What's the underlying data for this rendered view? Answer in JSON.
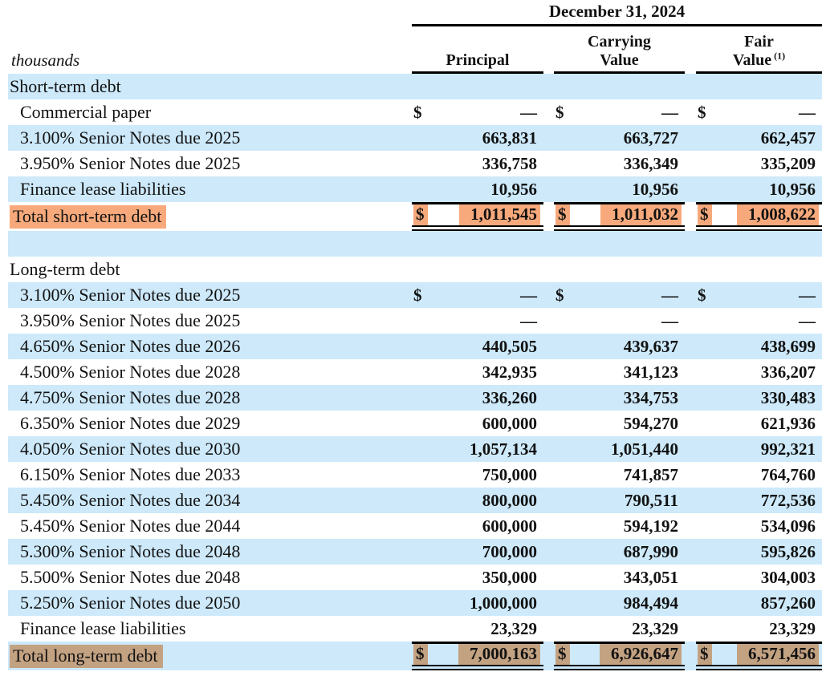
{
  "meta": {
    "unit_label": "thousands"
  },
  "header": {
    "date_title": "December 31, 2024",
    "columns": [
      {
        "lines": [
          "Principal"
        ],
        "footnote": ""
      },
      {
        "lines": [
          "Carrying",
          "Value"
        ],
        "footnote": ""
      },
      {
        "lines": [
          "Fair",
          "Value"
        ],
        "footnote": "(1)"
      }
    ]
  },
  "colors": {
    "row_alt_blue": "#cde9fa",
    "highlight_orange": "#f7a97b",
    "highlight_tan": "#c3a282",
    "text": "#121212"
  },
  "table": {
    "value_columns": [
      "Principal",
      "Carrying Value",
      "Fair Value (1)"
    ],
    "rows": [
      {
        "label": "Short-term debt",
        "type": "section",
        "bg": "blue",
        "indent": false,
        "dollar": false,
        "highlight": "",
        "values": null
      },
      {
        "label": "Commercial paper",
        "type": "item",
        "bg": "white",
        "indent": true,
        "dollar": true,
        "highlight": "",
        "values": [
          "—",
          "—",
          "—"
        ]
      },
      {
        "label": "3.100% Senior Notes due 2025",
        "type": "item",
        "bg": "blue",
        "indent": true,
        "dollar": false,
        "highlight": "",
        "values": [
          "663,831",
          "663,727",
          "662,457"
        ]
      },
      {
        "label": "3.950% Senior Notes due 2025",
        "type": "item",
        "bg": "white",
        "indent": true,
        "dollar": false,
        "highlight": "",
        "values": [
          "336,758",
          "336,349",
          "335,209"
        ]
      },
      {
        "label": "Finance lease liabilities",
        "type": "item",
        "bg": "blue",
        "indent": true,
        "dollar": false,
        "highlight": "",
        "values": [
          "10,956",
          "10,956",
          "10,956"
        ]
      },
      {
        "label": "Total short-term debt",
        "type": "total",
        "bg": "white",
        "indent": false,
        "dollar": true,
        "highlight": "orange",
        "values": [
          "1,011,545",
          "1,011,032",
          "1,008,622"
        ]
      },
      {
        "label": "",
        "type": "spacer",
        "bg": "blue",
        "indent": false,
        "dollar": false,
        "highlight": "",
        "values": null
      },
      {
        "label": "Long-term debt",
        "type": "section",
        "bg": "white",
        "indent": false,
        "dollar": false,
        "highlight": "",
        "values": null
      },
      {
        "label": "3.100% Senior Notes due 2025",
        "type": "item",
        "bg": "blue",
        "indent": true,
        "dollar": true,
        "highlight": "",
        "values": [
          "—",
          "—",
          "—"
        ]
      },
      {
        "label": "3.950% Senior Notes due 2025",
        "type": "item",
        "bg": "white",
        "indent": true,
        "dollar": false,
        "highlight": "",
        "values": [
          "—",
          "—",
          "—"
        ]
      },
      {
        "label": "4.650% Senior Notes due 2026",
        "type": "item",
        "bg": "blue",
        "indent": true,
        "dollar": false,
        "highlight": "",
        "values": [
          "440,505",
          "439,637",
          "438,699"
        ]
      },
      {
        "label": "4.500% Senior Notes due 2028",
        "type": "item",
        "bg": "white",
        "indent": true,
        "dollar": false,
        "highlight": "",
        "values": [
          "342,935",
          "341,123",
          "336,207"
        ]
      },
      {
        "label": "4.750% Senior Notes due 2028",
        "type": "item",
        "bg": "blue",
        "indent": true,
        "dollar": false,
        "highlight": "",
        "values": [
          "336,260",
          "334,753",
          "330,483"
        ]
      },
      {
        "label": "6.350% Senior Notes due 2029",
        "type": "item",
        "bg": "white",
        "indent": true,
        "dollar": false,
        "highlight": "",
        "values": [
          "600,000",
          "594,270",
          "621,936"
        ]
      },
      {
        "label": "4.050% Senior Notes due 2030",
        "type": "item",
        "bg": "blue",
        "indent": true,
        "dollar": false,
        "highlight": "",
        "values": [
          "1,057,134",
          "1,051,440",
          "992,321"
        ]
      },
      {
        "label": "6.150% Senior Notes due 2033",
        "type": "item",
        "bg": "white",
        "indent": true,
        "dollar": false,
        "highlight": "",
        "values": [
          "750,000",
          "741,857",
          "764,760"
        ]
      },
      {
        "label": "5.450% Senior Notes due 2034",
        "type": "item",
        "bg": "blue",
        "indent": true,
        "dollar": false,
        "highlight": "",
        "values": [
          "800,000",
          "790,511",
          "772,536"
        ]
      },
      {
        "label": "5.450% Senior Notes due 2044",
        "type": "item",
        "bg": "white",
        "indent": true,
        "dollar": false,
        "highlight": "",
        "values": [
          "600,000",
          "594,192",
          "534,096"
        ]
      },
      {
        "label": "5.300% Senior Notes due 2048",
        "type": "item",
        "bg": "blue",
        "indent": true,
        "dollar": false,
        "highlight": "",
        "values": [
          "700,000",
          "687,990",
          "595,826"
        ]
      },
      {
        "label": "5.500% Senior Notes due 2048",
        "type": "item",
        "bg": "white",
        "indent": true,
        "dollar": false,
        "highlight": "",
        "values": [
          "350,000",
          "343,051",
          "304,003"
        ]
      },
      {
        "label": "5.250% Senior Notes due 2050",
        "type": "item",
        "bg": "blue",
        "indent": true,
        "dollar": false,
        "highlight": "",
        "values": [
          "1,000,000",
          "984,494",
          "857,260"
        ]
      },
      {
        "label": "Finance lease liabilities",
        "type": "item",
        "bg": "white",
        "indent": true,
        "dollar": false,
        "highlight": "",
        "values": [
          "23,329",
          "23,329",
          "23,329"
        ]
      },
      {
        "label": "Total long-term debt",
        "type": "total",
        "bg": "blue",
        "indent": false,
        "dollar": true,
        "highlight": "tan",
        "values": [
          "7,000,163",
          "6,926,647",
          "6,571,456"
        ]
      }
    ]
  }
}
